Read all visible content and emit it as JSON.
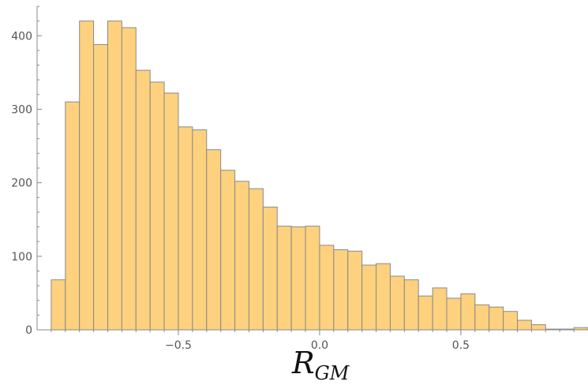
{
  "chart_data": {
    "type": "bar",
    "title": "",
    "xlabel": "R",
    "xlabel_subscript": "GM",
    "ylabel": "",
    "bin_width": 0.05,
    "xlim": [
      -1.0,
      0.95
    ],
    "ylim": [
      0,
      440
    ],
    "x_ticks": [
      -0.5,
      0.0,
      0.5
    ],
    "x_tick_labels": [
      "−0.5",
      "0.0",
      "0.5"
    ],
    "y_ticks": [
      0,
      100,
      200,
      300,
      400
    ],
    "y_tick_labels": [
      "0",
      "100",
      "200",
      "300",
      "400"
    ],
    "grid": false,
    "bar_fill": "#fdd17d",
    "bar_stroke": "#8a8a8a",
    "bins": [
      {
        "x0": -0.95,
        "x1": -0.9,
        "count": 68
      },
      {
        "x0": -0.9,
        "x1": -0.85,
        "count": 310
      },
      {
        "x0": -0.85,
        "x1": -0.8,
        "count": 420
      },
      {
        "x0": -0.8,
        "x1": -0.75,
        "count": 388
      },
      {
        "x0": -0.75,
        "x1": -0.7,
        "count": 420
      },
      {
        "x0": -0.7,
        "x1": -0.65,
        "count": 411
      },
      {
        "x0": -0.65,
        "x1": -0.6,
        "count": 353
      },
      {
        "x0": -0.6,
        "x1": -0.55,
        "count": 337
      },
      {
        "x0": -0.55,
        "x1": -0.5,
        "count": 322
      },
      {
        "x0": -0.5,
        "x1": -0.45,
        "count": 276
      },
      {
        "x0": -0.45,
        "x1": -0.4,
        "count": 272
      },
      {
        "x0": -0.4,
        "x1": -0.35,
        "count": 245
      },
      {
        "x0": -0.35,
        "x1": -0.3,
        "count": 217
      },
      {
        "x0": -0.3,
        "x1": -0.25,
        "count": 202
      },
      {
        "x0": -0.25,
        "x1": -0.2,
        "count": 192
      },
      {
        "x0": -0.2,
        "x1": -0.15,
        "count": 167
      },
      {
        "x0": -0.15,
        "x1": -0.1,
        "count": 141
      },
      {
        "x0": -0.1,
        "x1": -0.05,
        "count": 140
      },
      {
        "x0": -0.05,
        "x1": 0.0,
        "count": 141
      },
      {
        "x0": 0.0,
        "x1": 0.05,
        "count": 115
      },
      {
        "x0": 0.05,
        "x1": 0.1,
        "count": 109
      },
      {
        "x0": 0.1,
        "x1": 0.15,
        "count": 107
      },
      {
        "x0": 0.15,
        "x1": 0.2,
        "count": 88
      },
      {
        "x0": 0.2,
        "x1": 0.25,
        "count": 90
      },
      {
        "x0": 0.25,
        "x1": 0.3,
        "count": 73
      },
      {
        "x0": 0.3,
        "x1": 0.35,
        "count": 68
      },
      {
        "x0": 0.35,
        "x1": 0.4,
        "count": 46
      },
      {
        "x0": 0.4,
        "x1": 0.45,
        "count": 57
      },
      {
        "x0": 0.45,
        "x1": 0.5,
        "count": 43
      },
      {
        "x0": 0.5,
        "x1": 0.55,
        "count": 49
      },
      {
        "x0": 0.55,
        "x1": 0.6,
        "count": 34
      },
      {
        "x0": 0.6,
        "x1": 0.65,
        "count": 31
      },
      {
        "x0": 0.65,
        "x1": 0.7,
        "count": 25
      },
      {
        "x0": 0.7,
        "x1": 0.75,
        "count": 13
      },
      {
        "x0": 0.75,
        "x1": 0.8,
        "count": 7
      },
      {
        "x0": 0.8,
        "x1": 0.85,
        "count": 1
      },
      {
        "x0": 0.85,
        "x1": 0.9,
        "count": 1
      },
      {
        "x0": 0.9,
        "x1": 0.95,
        "count": 3
      }
    ]
  }
}
